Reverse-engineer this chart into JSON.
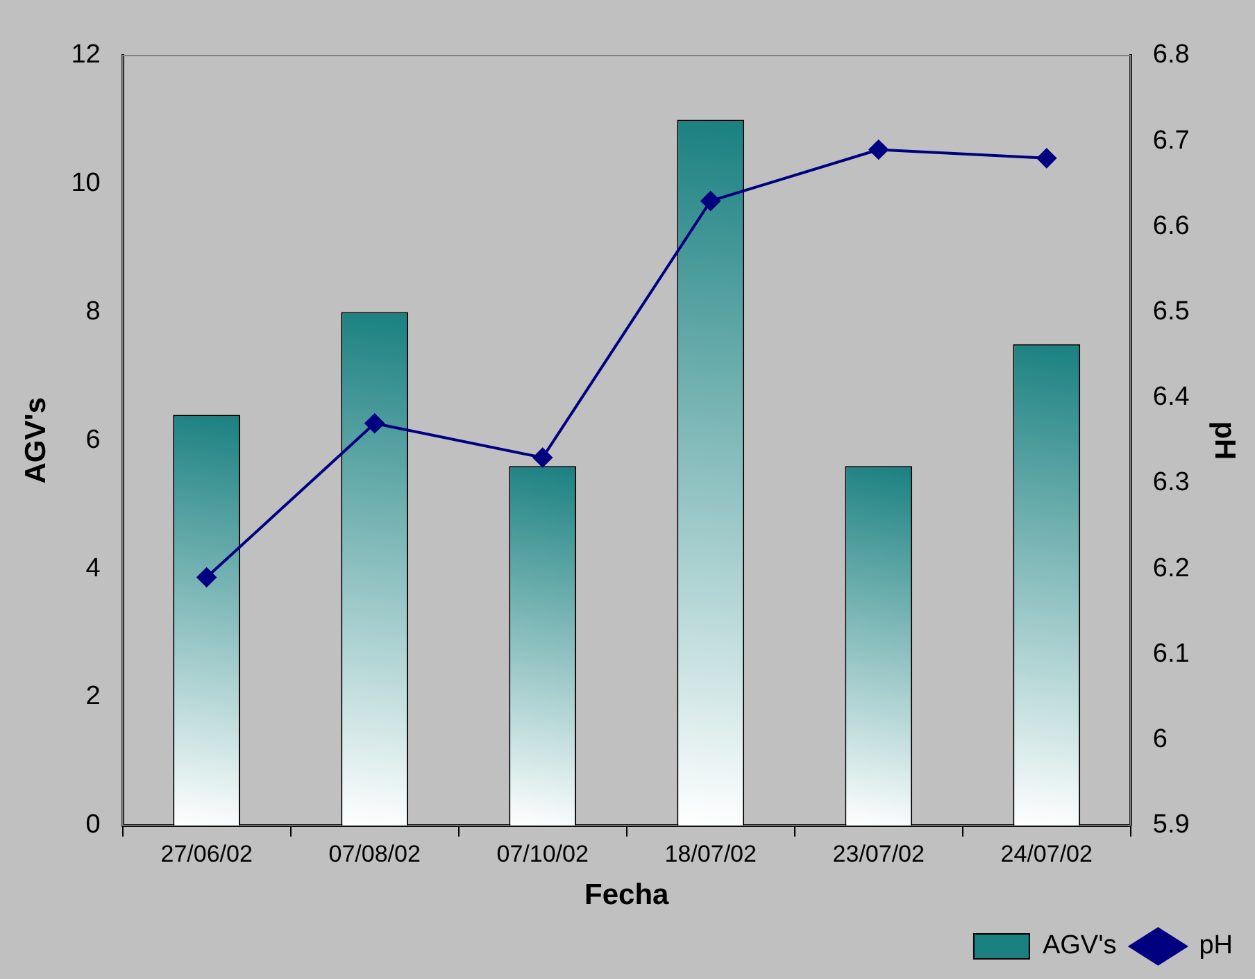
{
  "chart_data": {
    "type": "bar",
    "xlabel": "Fecha",
    "ylabel": "AGV's",
    "y2label": "pH",
    "categories": [
      "27/06/02",
      "07/08/02",
      "07/10/02",
      "18/07/02",
      "23/07/02",
      "24/07/02"
    ],
    "series": [
      {
        "name": "AGV's",
        "color": "#1a8080",
        "values": [
          6.4,
          8,
          5.6,
          11,
          5.6,
          7.5
        ]
      },
      {
        "name": "pH",
        "type": "line",
        "axis": "y2",
        "color": "#000080",
        "marker": "diamond",
        "values": [
          6.19,
          6.37,
          6.33,
          6.63,
          6.69,
          6.68
        ]
      }
    ],
    "ylim": [
      0,
      12
    ],
    "yticks": [
      0,
      2,
      4,
      6,
      8,
      10,
      12
    ],
    "y2lim": [
      5.9,
      6.8
    ],
    "y2ticks": [
      {
        "value": 5.9,
        "label": "5.9"
      },
      {
        "value": 6,
        "label": "6"
      },
      {
        "value": 6.1,
        "label": "6.1"
      },
      {
        "value": 6.2,
        "label": "6.2"
      },
      {
        "value": 6.3,
        "label": "6.3"
      },
      {
        "value": 6.4,
        "label": "6.4"
      },
      {
        "value": 6.5,
        "label": "6.5"
      },
      {
        "value": 6.6,
        "label": "6.6"
      },
      {
        "value": 6.7,
        "label": "6.7"
      },
      {
        "value": 6.8,
        "label": "6.8"
      }
    ],
    "grid": false,
    "legend": "bottom right"
  }
}
